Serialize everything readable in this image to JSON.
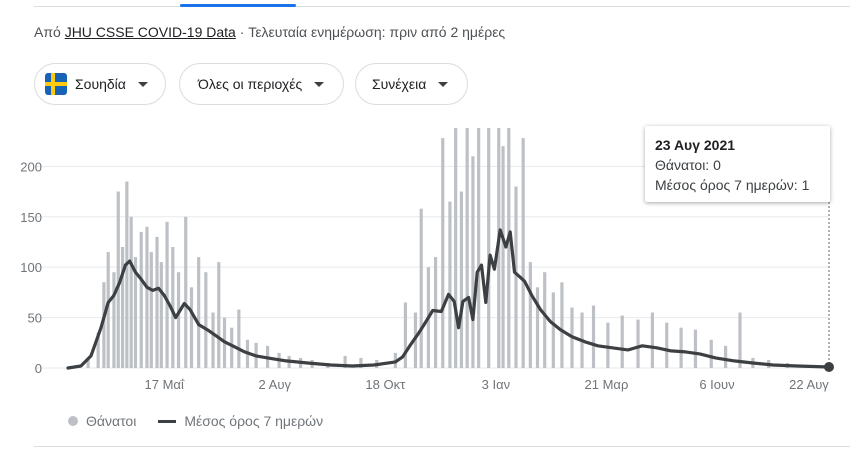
{
  "source": {
    "prefix": "Από",
    "link": "JHU CSSE COVID-19 Data",
    "updated": "· Τελευταία ενημέρωση: πριν από 2 ημέρες"
  },
  "filters": {
    "country": "Σουηδία",
    "region": "Όλες οι περιοχές",
    "period": "Συνέχεια"
  },
  "icons": {
    "country_flag": "sweden-flag-icon",
    "dropdown": "caret-down-icon"
  },
  "colors": {
    "bars": "#bdc1c6",
    "line": "#3c4043",
    "grid": "#e8eaed",
    "accent": "#1a73e8",
    "flag_blue": "#1863b5",
    "flag_yellow": "#fdca0f"
  },
  "tooltip": {
    "date": "23 Αυγ 2021",
    "deaths": "Θάνατοι: 0",
    "avg": "Μέσος όρος 7 ημερών: 1"
  },
  "legend": {
    "bars": "Θάνατοι",
    "line": "Μέσος όρος 7 ημερών"
  },
  "chart_data": {
    "type": "bar",
    "title": "",
    "xlabel": "",
    "ylabel": "",
    "x_range": [
      "2020-03-11",
      "2021-08-23"
    ],
    "ylim": [
      0,
      240
    ],
    "y_ticks": [
      0,
      50,
      100,
      150,
      200
    ],
    "x_ticks": [
      {
        "date": "2020-05-17",
        "label": "17 Μαΐ"
      },
      {
        "date": "2020-08-02",
        "label": "2 Αυγ"
      },
      {
        "date": "2020-10-18",
        "label": "18 Οκτ"
      },
      {
        "date": "2021-01-03",
        "label": "3 Ιαν"
      },
      {
        "date": "2021-03-21",
        "label": "21 Μαρ"
      },
      {
        "date": "2021-06-06",
        "label": "6 Ιουν"
      },
      {
        "date": "2021-08-22",
        "label": "22 Αυγ"
      }
    ],
    "grid": true,
    "legend": "bottom-left",
    "series": [
      {
        "name": "Θάνατοι",
        "type": "bar",
        "points": [
          [
            "2020-03-25",
            8
          ],
          [
            "2020-04-01",
            35
          ],
          [
            "2020-04-05",
            85
          ],
          [
            "2020-04-08",
            115
          ],
          [
            "2020-04-12",
            95
          ],
          [
            "2020-04-15",
            175
          ],
          [
            "2020-04-18",
            120
          ],
          [
            "2020-04-21",
            185
          ],
          [
            "2020-04-24",
            150
          ],
          [
            "2020-04-27",
            110
          ],
          [
            "2020-05-01",
            135
          ],
          [
            "2020-05-05",
            140
          ],
          [
            "2020-05-08",
            115
          ],
          [
            "2020-05-12",
            130
          ],
          [
            "2020-05-15",
            105
          ],
          [
            "2020-05-19",
            145
          ],
          [
            "2020-05-23",
            120
          ],
          [
            "2020-05-27",
            95
          ],
          [
            "2020-06-01",
            150
          ],
          [
            "2020-06-05",
            80
          ],
          [
            "2020-06-10",
            110
          ],
          [
            "2020-06-15",
            95
          ],
          [
            "2020-06-20",
            55
          ],
          [
            "2020-06-24",
            105
          ],
          [
            "2020-06-28",
            50
          ],
          [
            "2020-07-03",
            40
          ],
          [
            "2020-07-08",
            58
          ],
          [
            "2020-07-14",
            28
          ],
          [
            "2020-07-20",
            25
          ],
          [
            "2020-07-28",
            22
          ],
          [
            "2020-08-05",
            15
          ],
          [
            "2020-08-12",
            12
          ],
          [
            "2020-08-20",
            10
          ],
          [
            "2020-08-28",
            8
          ],
          [
            "2020-09-08",
            5
          ],
          [
            "2020-09-20",
            12
          ],
          [
            "2020-10-01",
            10
          ],
          [
            "2020-10-12",
            8
          ],
          [
            "2020-10-25",
            15
          ],
          [
            "2020-11-01",
            65
          ],
          [
            "2020-11-08",
            55
          ],
          [
            "2020-11-12",
            158
          ],
          [
            "2020-11-17",
            100
          ],
          [
            "2020-11-22",
            110
          ],
          [
            "2020-11-27",
            228
          ],
          [
            "2020-12-02",
            165
          ],
          [
            "2020-12-06",
            238
          ],
          [
            "2020-12-10",
            175
          ],
          [
            "2020-12-14",
            238
          ],
          [
            "2020-12-18",
            210
          ],
          [
            "2020-12-22",
            238
          ],
          [
            "2020-12-29",
            238
          ],
          [
            "2021-01-05",
            238
          ],
          [
            "2021-01-08",
            220
          ],
          [
            "2021-01-12",
            238
          ],
          [
            "2021-01-17",
            180
          ],
          [
            "2021-01-22",
            228
          ],
          [
            "2021-01-27",
            105
          ],
          [
            "2021-02-01",
            80
          ],
          [
            "2021-02-06",
            95
          ],
          [
            "2021-02-12",
            75
          ],
          [
            "2021-02-18",
            85
          ],
          [
            "2021-02-25",
            60
          ],
          [
            "2021-03-04",
            55
          ],
          [
            "2021-03-12",
            62
          ],
          [
            "2021-03-22",
            45
          ],
          [
            "2021-04-01",
            52
          ],
          [
            "2021-04-12",
            48
          ],
          [
            "2021-04-22",
            55
          ],
          [
            "2021-05-02",
            45
          ],
          [
            "2021-05-12",
            40
          ],
          [
            "2021-05-22",
            38
          ],
          [
            "2021-06-02",
            28
          ],
          [
            "2021-06-12",
            22
          ],
          [
            "2021-06-22",
            55
          ],
          [
            "2021-07-01",
            10
          ],
          [
            "2021-07-12",
            8
          ],
          [
            "2021-07-25",
            5
          ],
          [
            "2021-08-08",
            3
          ],
          [
            "2021-08-23",
            0
          ]
        ]
      },
      {
        "name": "Μέσος όρος 7 ημερών",
        "type": "line",
        "points": [
          [
            "2020-03-11",
            0
          ],
          [
            "2020-03-20",
            2
          ],
          [
            "2020-03-27",
            12
          ],
          [
            "2020-04-03",
            40
          ],
          [
            "2020-04-08",
            65
          ],
          [
            "2020-04-12",
            72
          ],
          [
            "2020-04-16",
            85
          ],
          [
            "2020-04-20",
            102
          ],
          [
            "2020-04-23",
            106
          ],
          [
            "2020-04-27",
            95
          ],
          [
            "2020-05-01",
            88
          ],
          [
            "2020-05-05",
            80
          ],
          [
            "2020-05-09",
            77
          ],
          [
            "2020-05-13",
            79
          ],
          [
            "2020-05-17",
            72
          ],
          [
            "2020-05-21",
            62
          ],
          [
            "2020-05-25",
            50
          ],
          [
            "2020-05-31",
            64
          ],
          [
            "2020-06-04",
            58
          ],
          [
            "2020-06-10",
            43
          ],
          [
            "2020-06-16",
            38
          ],
          [
            "2020-06-22",
            32
          ],
          [
            "2020-06-28",
            26
          ],
          [
            "2020-07-05",
            21
          ],
          [
            "2020-07-12",
            16
          ],
          [
            "2020-07-20",
            12
          ],
          [
            "2020-07-28",
            10
          ],
          [
            "2020-08-10",
            7
          ],
          [
            "2020-08-25",
            5
          ],
          [
            "2020-09-10",
            3
          ],
          [
            "2020-09-25",
            2
          ],
          [
            "2020-10-10",
            3
          ],
          [
            "2020-10-25",
            6
          ],
          [
            "2020-10-30",
            11
          ],
          [
            "2020-11-05",
            24
          ],
          [
            "2020-11-10",
            34
          ],
          [
            "2020-11-14",
            43
          ],
          [
            "2020-11-20",
            57
          ],
          [
            "2020-11-26",
            56
          ],
          [
            "2020-12-01",
            73
          ],
          [
            "2020-12-05",
            66
          ],
          [
            "2020-12-08",
            40
          ],
          [
            "2020-12-11",
            66
          ],
          [
            "2020-12-15",
            70
          ],
          [
            "2020-12-18",
            48
          ],
          [
            "2020-12-21",
            95
          ],
          [
            "2020-12-24",
            102
          ],
          [
            "2020-12-27",
            65
          ],
          [
            "2020-12-30",
            112
          ],
          [
            "2021-01-02",
            98
          ],
          [
            "2021-01-06",
            137
          ],
          [
            "2021-01-10",
            120
          ],
          [
            "2021-01-13",
            135
          ],
          [
            "2021-01-16",
            95
          ],
          [
            "2021-01-20",
            90
          ],
          [
            "2021-01-23",
            86
          ],
          [
            "2021-01-28",
            72
          ],
          [
            "2021-02-03",
            58
          ],
          [
            "2021-02-10",
            46
          ],
          [
            "2021-02-17",
            38
          ],
          [
            "2021-02-25",
            31
          ],
          [
            "2021-03-06",
            26
          ],
          [
            "2021-03-15",
            22
          ],
          [
            "2021-03-25",
            20
          ],
          [
            "2021-04-05",
            18
          ],
          [
            "2021-04-15",
            22
          ],
          [
            "2021-04-25",
            20
          ],
          [
            "2021-05-05",
            17
          ],
          [
            "2021-05-15",
            16
          ],
          [
            "2021-05-25",
            14
          ],
          [
            "2021-06-05",
            10
          ],
          [
            "2021-06-18",
            7
          ],
          [
            "2021-07-01",
            5
          ],
          [
            "2021-07-15",
            3
          ],
          [
            "2021-08-01",
            2
          ],
          [
            "2021-08-23",
            1
          ]
        ]
      }
    ],
    "highlight": {
      "date": "2021-08-23",
      "deaths": 0,
      "avg": 1
    }
  }
}
